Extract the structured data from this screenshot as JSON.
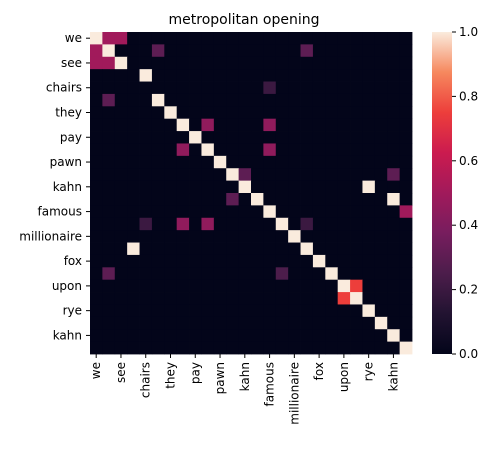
{
  "chart_data": {
    "type": "heatmap",
    "title": "metropolitan opening",
    "xlabel": "",
    "ylabel": "",
    "rows": [
      "we",
      "",
      "see",
      "",
      "chairs",
      "",
      "they",
      "",
      "pay",
      "",
      "pawn",
      "",
      "kahn",
      "",
      "famous",
      "",
      "millionaire",
      "",
      "fox",
      "",
      "upon",
      "",
      "rye",
      "",
      "kahn",
      ""
    ],
    "columns": [
      "we",
      "",
      "see",
      "",
      "chairs",
      "",
      "they",
      "",
      "pay",
      "",
      "pawn",
      "",
      "kahn",
      "",
      "famous",
      "",
      "millionaire",
      "",
      "fox",
      "",
      "upon",
      "",
      "rye",
      "",
      "kahn",
      ""
    ],
    "values": [
      [
        1,
        0.5,
        0.5,
        0,
        0,
        0,
        0,
        0,
        0,
        0,
        0,
        0,
        0,
        0,
        0,
        0,
        0,
        0,
        0,
        0,
        0,
        0,
        0,
        0,
        0,
        0
      ],
      [
        0.5,
        1,
        0,
        0,
        0,
        0.3,
        0,
        0,
        0,
        0,
        0,
        0,
        0,
        0,
        0,
        0,
        0,
        0.3,
        0,
        0,
        0,
        0,
        0,
        0,
        0,
        0
      ],
      [
        0.5,
        0.5,
        1,
        0,
        0,
        0,
        0,
        0,
        0,
        0,
        0,
        0,
        0,
        0,
        0,
        0,
        0,
        0,
        0,
        0,
        0,
        0,
        0,
        0,
        0,
        0
      ],
      [
        0,
        0,
        0,
        0,
        1,
        0,
        0,
        0,
        0,
        0,
        0,
        0,
        0,
        0,
        0,
        0,
        0,
        0,
        0,
        0,
        0,
        0,
        0,
        0,
        0,
        0
      ],
      [
        0,
        0,
        0,
        0,
        0,
        0,
        0,
        0,
        0,
        0,
        0,
        0,
        0,
        0,
        0.2,
        0,
        0,
        0,
        0,
        0,
        0,
        0,
        0,
        0,
        0,
        0
      ],
      [
        0,
        0.3,
        0,
        0,
        0,
        1,
        0,
        0,
        0,
        0,
        0,
        0,
        0,
        0,
        0,
        0,
        0,
        0,
        0,
        0,
        0,
        0,
        0,
        0,
        0,
        0
      ],
      [
        0,
        0,
        0,
        0,
        0,
        0,
        1,
        0,
        0,
        0,
        0,
        0,
        0,
        0,
        0,
        0,
        0,
        0,
        0,
        0,
        0,
        0,
        0,
        0,
        0,
        0
      ],
      [
        0,
        0,
        0,
        0,
        0,
        0,
        0,
        1,
        0,
        0.45,
        0,
        0,
        0,
        0,
        0.45,
        0,
        0,
        0,
        0,
        0,
        0,
        0,
        0,
        0,
        0,
        0
      ],
      [
        0,
        0,
        0,
        0,
        0,
        0,
        0,
        0,
        1,
        0,
        0,
        0,
        0,
        0,
        0,
        0,
        0,
        0,
        0,
        0,
        0,
        0,
        0,
        0,
        0,
        0
      ],
      [
        0,
        0,
        0,
        0,
        0,
        0,
        0,
        0.45,
        0,
        1,
        0,
        0,
        0,
        0,
        0.45,
        0,
        0,
        0,
        0,
        0,
        0,
        0,
        0,
        0,
        0,
        0
      ],
      [
        0,
        0,
        0,
        0,
        0,
        0,
        0,
        0,
        0,
        0,
        1,
        0,
        0,
        0,
        0,
        0,
        0,
        0,
        0,
        0,
        0,
        0,
        0,
        0,
        0,
        0
      ],
      [
        0,
        0,
        0,
        0,
        0,
        0,
        0,
        0,
        0,
        0,
        0,
        1,
        0.3,
        0,
        0,
        0,
        0,
        0,
        0,
        0,
        0,
        0,
        0,
        0,
        0.3,
        0
      ],
      [
        0,
        0,
        0,
        0,
        0,
        0,
        0,
        0,
        0,
        0,
        0,
        0,
        1,
        0,
        0,
        0,
        0,
        0,
        0,
        0,
        0,
        0,
        1,
        0,
        0,
        0
      ],
      [
        0,
        0,
        0,
        0,
        0,
        0,
        0,
        0,
        0,
        0,
        0,
        0.3,
        0,
        1,
        0,
        0,
        0,
        0,
        0,
        0,
        0,
        0,
        0,
        0,
        1,
        0
      ],
      [
        0,
        0,
        0,
        0,
        0,
        0,
        0,
        0,
        0,
        0,
        0,
        0,
        0,
        0,
        1,
        0,
        0,
        0,
        0,
        0,
        0,
        0,
        0,
        0,
        0,
        0.5
      ],
      [
        0,
        0,
        0,
        0,
        0.2,
        0,
        0,
        0.45,
        0,
        0.45,
        0,
        0,
        0,
        0,
        0,
        1,
        0,
        0.2,
        0,
        0,
        0,
        0,
        0,
        0,
        0,
        0
      ],
      [
        0,
        0,
        0,
        0,
        0,
        0,
        0,
        0,
        0,
        0,
        0,
        0,
        0,
        0,
        0,
        0,
        1,
        0,
        0,
        0,
        0,
        0,
        0,
        0,
        0,
        0
      ],
      [
        0,
        0,
        0,
        1,
        0,
        0,
        0,
        0,
        0,
        0,
        0,
        0,
        0,
        0,
        0,
        0,
        0,
        1,
        0,
        0,
        0,
        0,
        0,
        0,
        0,
        0
      ],
      [
        0,
        0,
        0,
        0,
        0,
        0,
        0,
        0,
        0,
        0,
        0,
        0,
        0,
        0,
        0,
        0,
        0,
        0,
        1,
        0,
        0,
        0,
        0,
        0,
        0,
        0
      ],
      [
        0,
        0.3,
        0,
        0,
        0,
        0,
        0,
        0,
        0,
        0,
        0,
        0,
        0,
        0,
        0,
        0.25,
        0,
        0,
        0,
        1,
        0,
        0,
        0,
        0,
        0,
        0
      ],
      [
        0,
        0,
        0,
        0,
        0,
        0,
        0,
        0,
        0,
        0,
        0,
        0,
        0,
        0,
        0,
        0,
        0,
        0,
        0,
        0,
        1,
        0.75,
        0,
        0,
        0,
        0
      ],
      [
        0,
        0,
        0,
        0,
        0,
        0,
        0,
        0,
        0,
        0,
        0,
        0,
        0,
        0,
        0,
        0,
        0,
        0,
        0,
        0,
        0.75,
        1,
        0,
        0,
        0,
        0
      ],
      [
        0,
        0,
        0,
        0,
        0,
        0,
        0,
        0,
        0,
        0,
        0,
        0,
        0,
        0,
        0,
        0,
        0,
        0,
        0,
        0,
        0,
        0,
        1,
        0,
        0,
        0
      ],
      [
        0,
        0,
        0,
        0,
        0,
        0,
        0,
        0,
        0,
        0,
        0,
        0,
        0,
        0,
        0,
        0,
        0,
        0,
        0,
        0,
        0,
        0,
        0,
        1,
        0,
        0
      ],
      [
        0,
        0,
        0,
        0,
        0,
        0,
        0,
        0,
        0,
        0,
        0,
        0,
        0,
        0,
        0,
        0,
        0,
        0,
        0,
        0,
        0,
        0,
        0,
        0,
        1,
        0
      ],
      [
        0,
        0,
        0,
        0,
        0,
        0,
        0,
        0,
        0,
        0,
        0,
        0,
        0,
        0,
        0,
        0,
        0,
        0,
        0,
        0,
        0,
        0,
        0,
        0,
        0,
        1
      ]
    ],
    "colorbar": {
      "min": 0,
      "max": 1,
      "ticks": [
        "0.0",
        "0.2",
        "0.4",
        "0.6",
        "0.8",
        "1.0"
      ],
      "colormap": "rocket"
    },
    "grid": false,
    "legend": "none"
  }
}
